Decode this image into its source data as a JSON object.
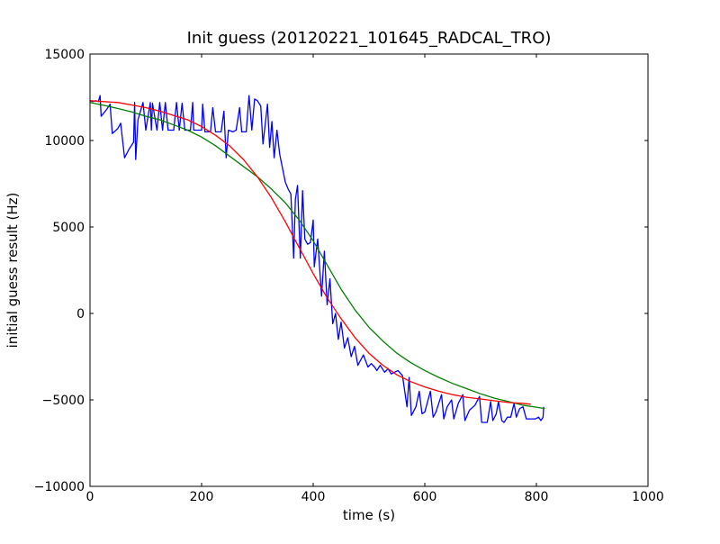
{
  "chart_data": {
    "type": "line",
    "title": "Init guess (20120221_101645_RADCAL_TRO)",
    "xlabel": "time (s)",
    "ylabel": "initial guess result (Hz)",
    "xlim": [
      0,
      1000
    ],
    "ylim": [
      -10000,
      15000
    ],
    "xticks": [
      0,
      200,
      400,
      600,
      800,
      1000
    ],
    "yticks": [
      -10000,
      -5000,
      0,
      5000,
      10000,
      15000
    ],
    "xtick_labels": [
      "0",
      "200",
      "400",
      "600",
      "800",
      "1000"
    ],
    "ytick_labels": [
      "−10000",
      "−5000",
      "0",
      "5000",
      "10000",
      "15000"
    ],
    "grid": false,
    "legend": "none",
    "series": [
      {
        "color": "#0000ff",
        "style": "measured, noisy",
        "points": [
          [
            0,
            12300
          ],
          [
            5,
            12250
          ],
          [
            10,
            12300
          ],
          [
            15,
            12250
          ],
          [
            18,
            12600
          ],
          [
            20,
            11400
          ],
          [
            30,
            11800
          ],
          [
            36,
            12100
          ],
          [
            40,
            10400
          ],
          [
            50,
            10700
          ],
          [
            55,
            11000
          ],
          [
            62,
            9000
          ],
          [
            70,
            9500
          ],
          [
            78,
            9900
          ],
          [
            80,
            12200
          ],
          [
            82,
            8900
          ],
          [
            86,
            11200
          ],
          [
            95,
            12200
          ],
          [
            100,
            10600
          ],
          [
            108,
            12200
          ],
          [
            110,
            10600
          ],
          [
            112,
            12150
          ],
          [
            120,
            10600
          ],
          [
            125,
            12200
          ],
          [
            130,
            10600
          ],
          [
            135,
            12200
          ],
          [
            140,
            10600
          ],
          [
            150,
            10600
          ],
          [
            155,
            12200
          ],
          [
            160,
            10600
          ],
          [
            165,
            12150
          ],
          [
            170,
            10600
          ],
          [
            180,
            10600
          ],
          [
            184,
            12200
          ],
          [
            186,
            10600
          ],
          [
            200,
            10600
          ],
          [
            202,
            12100
          ],
          [
            206,
            10500
          ],
          [
            216,
            10500
          ],
          [
            220,
            11900
          ],
          [
            225,
            10500
          ],
          [
            235,
            10500
          ],
          [
            240,
            11700
          ],
          [
            244,
            9000
          ],
          [
            248,
            10600
          ],
          [
            256,
            10500
          ],
          [
            262,
            10600
          ],
          [
            268,
            11900
          ],
          [
            272,
            10500
          ],
          [
            280,
            10500
          ],
          [
            285,
            12600
          ],
          [
            290,
            10600
          ],
          [
            295,
            12400
          ],
          [
            300,
            12300
          ],
          [
            306,
            12000
          ],
          [
            310,
            9800
          ],
          [
            318,
            12100
          ],
          [
            322,
            9600
          ],
          [
            326,
            11100
          ],
          [
            330,
            9000
          ],
          [
            335,
            10600
          ],
          [
            340,
            9200
          ],
          [
            350,
            7600
          ],
          [
            355,
            7200
          ],
          [
            360,
            6900
          ],
          [
            365,
            3200
          ],
          [
            368,
            6600
          ],
          [
            372,
            7400
          ],
          [
            377,
            3200
          ],
          [
            381,
            7100
          ],
          [
            385,
            4300
          ],
          [
            390,
            4000
          ],
          [
            395,
            4100
          ],
          [
            400,
            5400
          ],
          [
            402,
            2700
          ],
          [
            408,
            4300
          ],
          [
            415,
            1000
          ],
          [
            420,
            3600
          ],
          [
            425,
            500
          ],
          [
            430,
            2000
          ],
          [
            435,
            -600
          ],
          [
            440,
            0
          ],
          [
            445,
            -1500
          ],
          [
            450,
            -500
          ],
          [
            456,
            -2000
          ],
          [
            462,
            -1400
          ],
          [
            468,
            -2500
          ],
          [
            474,
            -1900
          ],
          [
            480,
            -3000
          ],
          [
            490,
            -2400
          ],
          [
            498,
            -3100
          ],
          [
            504,
            -2900
          ],
          [
            510,
            -3100
          ],
          [
            514,
            -3300
          ],
          [
            520,
            -3000
          ],
          [
            528,
            -3400
          ],
          [
            534,
            -3200
          ],
          [
            540,
            -3500
          ],
          [
            546,
            -3400
          ],
          [
            552,
            -3300
          ],
          [
            560,
            -3600
          ],
          [
            568,
            -5400
          ],
          [
            572,
            -3700
          ],
          [
            576,
            -5900
          ],
          [
            584,
            -5400
          ],
          [
            590,
            -4500
          ],
          [
            595,
            -5800
          ],
          [
            600,
            -5700
          ],
          [
            610,
            -4500
          ],
          [
            615,
            -6000
          ],
          [
            620,
            -5700
          ],
          [
            630,
            -4700
          ],
          [
            634,
            -6100
          ],
          [
            640,
            -5400
          ],
          [
            648,
            -5000
          ],
          [
            652,
            -6100
          ],
          [
            660,
            -5200
          ],
          [
            668,
            -4700
          ],
          [
            672,
            -6200
          ],
          [
            680,
            -5600
          ],
          [
            690,
            -5300
          ],
          [
            698,
            -4800
          ],
          [
            702,
            -6300
          ],
          [
            712,
            -6300
          ],
          [
            718,
            -5100
          ],
          [
            722,
            -6200
          ],
          [
            728,
            -5800
          ],
          [
            732,
            -5100
          ],
          [
            738,
            -6200
          ],
          [
            742,
            -6300
          ],
          [
            748,
            -6000
          ],
          [
            754,
            -6000
          ],
          [
            760,
            -5200
          ],
          [
            764,
            -6000
          ],
          [
            770,
            -5500
          ],
          [
            776,
            -5400
          ],
          [
            782,
            -6100
          ],
          [
            790,
            -6100
          ],
          [
            798,
            -6100
          ],
          [
            804,
            -6000
          ],
          [
            808,
            -6200
          ],
          [
            812,
            -6000
          ],
          [
            813,
            -5400
          ]
        ]
      },
      {
        "color": "#008000",
        "style": "smooth fit",
        "points": [
          [
            0,
            12200
          ],
          [
            15,
            12100
          ],
          [
            30,
            12000
          ],
          [
            50,
            11850
          ],
          [
            75,
            11650
          ],
          [
            100,
            11400
          ],
          [
            125,
            11200
          ],
          [
            150,
            10900
          ],
          [
            175,
            10600
          ],
          [
            200,
            10200
          ],
          [
            225,
            9700
          ],
          [
            250,
            9100
          ],
          [
            275,
            8500
          ],
          [
            300,
            7900
          ],
          [
            325,
            7200
          ],
          [
            350,
            6400
          ],
          [
            375,
            5400
          ],
          [
            400,
            4200
          ],
          [
            425,
            2800
          ],
          [
            450,
            1400
          ],
          [
            475,
            200
          ],
          [
            500,
            -800
          ],
          [
            525,
            -1600
          ],
          [
            550,
            -2300
          ],
          [
            575,
            -2850
          ],
          [
            600,
            -3300
          ],
          [
            625,
            -3700
          ],
          [
            650,
            -4050
          ],
          [
            675,
            -4350
          ],
          [
            700,
            -4650
          ],
          [
            725,
            -4900
          ],
          [
            750,
            -5100
          ],
          [
            775,
            -5300
          ],
          [
            800,
            -5420
          ],
          [
            815,
            -5500
          ]
        ]
      },
      {
        "color": "#ff0000",
        "style": "smooth fit",
        "points": [
          [
            0,
            12300
          ],
          [
            25,
            12250
          ],
          [
            50,
            12200
          ],
          [
            75,
            12050
          ],
          [
            100,
            11900
          ],
          [
            125,
            11700
          ],
          [
            150,
            11450
          ],
          [
            175,
            11200
          ],
          [
            200,
            10800
          ],
          [
            225,
            10300
          ],
          [
            250,
            9700
          ],
          [
            275,
            8900
          ],
          [
            300,
            7900
          ],
          [
            325,
            6700
          ],
          [
            350,
            5300
          ],
          [
            375,
            3800
          ],
          [
            400,
            2300
          ],
          [
            425,
            900
          ],
          [
            450,
            -300
          ],
          [
            475,
            -1400
          ],
          [
            500,
            -2300
          ],
          [
            525,
            -3000
          ],
          [
            550,
            -3550
          ],
          [
            575,
            -3950
          ],
          [
            600,
            -4250
          ],
          [
            625,
            -4500
          ],
          [
            650,
            -4700
          ],
          [
            675,
            -4850
          ],
          [
            700,
            -4950
          ],
          [
            725,
            -5050
          ],
          [
            750,
            -5150
          ],
          [
            775,
            -5200
          ],
          [
            790,
            -5250
          ]
        ]
      }
    ]
  }
}
